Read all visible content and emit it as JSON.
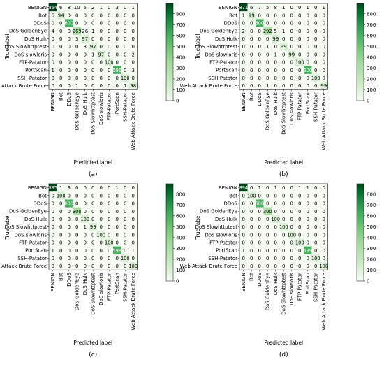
{
  "classes": [
    "BENIGN",
    "Bot",
    "DDoS",
    "DoS GoldenEye",
    "DoS Hulk",
    "DoS Slowhttptest",
    "DoS slowloris",
    "FTP-Patator",
    "PortScan",
    "SSH-Patator",
    "Web Attack Brute Force"
  ],
  "xlabel": "Predicted label",
  "ylabel": "True label",
  "colorbar_ticks": [
    0,
    100,
    200,
    300,
    400,
    500,
    600,
    700,
    800
  ],
  "colorbar_max": 895,
  "colors": {
    "low": "#f7fcf5",
    "high": "#00441b"
  },
  "chart_data": [
    {
      "type": "heatmap",
      "caption": "(a)",
      "xlabel": "Predicted label",
      "ylabel": "True label",
      "x_categories": [
        "BENIGN",
        "Bot",
        "DDoS",
        "DoS GoldenEye",
        "DoS Hulk",
        "DoS Slowhttptest",
        "DoS slowloris",
        "FTP-Patator",
        "PortScan",
        "SSH-Patator",
        "Web Attack Brute Force"
      ],
      "y_categories": [
        "BENIGN",
        "Bot",
        "DDoS",
        "DoS GoldenEye",
        "DoS Hulk",
        "DoS Slowhttptest",
        "DoS slowloris",
        "FTP-Patator",
        "PortScan",
        "SSH-Patator",
        "Web Attack Brute Force"
      ],
      "zlim": [
        0,
        864
      ],
      "matrix": [
        [
          864,
          6,
          8,
          10,
          5,
          2,
          1,
          0,
          3,
          0,
          1
        ],
        [
          6,
          94,
          0,
          0,
          0,
          0,
          0,
          0,
          0,
          0,
          0
        ],
        [
          0,
          0,
          600,
          0,
          0,
          0,
          0,
          0,
          0,
          0,
          0
        ],
        [
          4,
          0,
          0,
          269,
          26,
          1,
          0,
          0,
          0,
          0,
          0
        ],
        [
          0,
          0,
          0,
          3,
          97,
          0,
          0,
          0,
          0,
          0,
          0
        ],
        [
          0,
          0,
          0,
          0,
          3,
          97,
          0,
          0,
          0,
          0,
          0
        ],
        [
          0,
          0,
          0,
          0,
          0,
          1,
          97,
          0,
          0,
          0,
          2
        ],
        [
          0,
          0,
          0,
          0,
          0,
          0,
          0,
          100,
          0,
          0,
          0
        ],
        [
          1,
          0,
          0,
          0,
          0,
          0,
          0,
          0,
          596,
          0,
          3
        ],
        [
          0,
          0,
          0,
          0,
          0,
          0,
          0,
          0,
          0,
          100,
          0
        ],
        [
          0,
          0,
          0,
          1,
          0,
          0,
          0,
          0,
          0,
          1,
          98
        ]
      ]
    },
    {
      "type": "heatmap",
      "caption": "(b)",
      "xlabel": "Predicted label",
      "ylabel": "True label",
      "x_categories": [
        "BENIGN",
        "Bot",
        "DDoS",
        "DoS GoldenEye",
        "DoS Hulk",
        "DoS Slowhttptest",
        "DoS slowloris",
        "FTP-Patator",
        "PortScan",
        "SSH-Patator",
        "Web Attack Brute Force"
      ],
      "y_categories": [
        "BENIGN",
        "Bot",
        "DDoS",
        "DoS GoldenEye",
        "DoS Hulk",
        "DoS Slowhttptest",
        "DoS slowloris",
        "FTP-Patator",
        "PortScan",
        "SSH-Patator",
        "Web Attack Brute Force"
      ],
      "zlim": [
        0,
        871
      ],
      "matrix": [
        [
          871,
          6,
          7,
          5,
          8,
          1,
          0,
          0,
          1,
          0,
          1
        ],
        [
          1,
          99,
          0,
          0,
          0,
          0,
          0,
          0,
          0,
          0,
          0
        ],
        [
          0,
          0,
          600,
          0,
          0,
          0,
          0,
          0,
          0,
          0,
          0
        ],
        [
          2,
          0,
          0,
          292,
          5,
          1,
          0,
          0,
          0,
          0,
          0
        ],
        [
          0,
          0,
          0,
          0,
          99,
          0,
          0,
          0,
          0,
          0,
          0
        ],
        [
          0,
          0,
          0,
          1,
          0,
          99,
          0,
          0,
          0,
          0,
          0
        ],
        [
          0,
          0,
          0,
          0,
          1,
          0,
          99,
          0,
          0,
          0,
          0
        ],
        [
          0,
          0,
          0,
          0,
          0,
          0,
          0,
          100,
          0,
          0,
          0
        ],
        [
          0,
          0,
          0,
          0,
          0,
          0,
          0,
          0,
          600,
          0,
          0
        ],
        [
          0,
          0,
          0,
          0,
          0,
          0,
          0,
          0,
          0,
          100,
          0
        ],
        [
          0,
          0,
          0,
          1,
          0,
          0,
          0,
          0,
          0,
          0,
          99
        ]
      ]
    },
    {
      "type": "heatmap",
      "caption": "(c)",
      "xlabel": "Predicted label",
      "ylabel": "True label",
      "x_categories": [
        "BENIGN",
        "Bot",
        "DDoS",
        "DoS GoldenEye",
        "DoS Hulk",
        "DoS Slowhttptest",
        "DoS slowloris",
        "FTP-Patator",
        "PortScan",
        "SSH-Patator",
        "Web Attack Brute Force"
      ],
      "y_categories": [
        "BENIGN",
        "Bot",
        "DDoS",
        "DoS GoldenEye",
        "DoS Hulk",
        "DoS Slowhttptest",
        "DoS slowloris",
        "FTP-Patator",
        "PortScan",
        "SSH-Patator",
        "Web Attack Brute Force"
      ],
      "zlim": [
        0,
        895
      ],
      "matrix": [
        [
          895,
          1,
          3,
          0,
          0,
          0,
          0,
          0,
          1,
          0,
          0
        ],
        [
          0,
          100,
          0,
          0,
          0,
          0,
          0,
          0,
          0,
          0,
          0
        ],
        [
          0,
          0,
          600,
          0,
          0,
          0,
          0,
          0,
          0,
          0,
          0
        ],
        [
          0,
          0,
          0,
          300,
          0,
          0,
          0,
          0,
          0,
          0,
          0
        ],
        [
          0,
          0,
          0,
          0,
          100,
          0,
          0,
          0,
          0,
          0,
          0
        ],
        [
          0,
          0,
          0,
          0,
          1,
          99,
          0,
          0,
          0,
          0,
          0
        ],
        [
          0,
          0,
          0,
          0,
          0,
          0,
          100,
          0,
          0,
          0,
          0
        ],
        [
          0,
          0,
          0,
          0,
          0,
          0,
          0,
          100,
          0,
          0,
          0
        ],
        [
          1,
          0,
          0,
          0,
          0,
          0,
          0,
          0,
          598,
          0,
          1
        ],
        [
          0,
          0,
          0,
          0,
          0,
          0,
          0,
          0,
          0,
          100,
          0
        ],
        [
          0,
          0,
          0,
          0,
          0,
          0,
          0,
          0,
          0,
          0,
          100
        ]
      ]
    },
    {
      "type": "heatmap",
      "caption": "(d)",
      "xlabel": "Predicted label",
      "ylabel": "True label",
      "x_categories": [
        "BENIGN",
        "Bot",
        "DDoS",
        "DoS GoldenEye",
        "DoS Hulk",
        "DoS Slowhttptest",
        "DoS slowloris",
        "FTP-Patator",
        "PortScan",
        "SSH-Patator",
        "Web Attack Brute Force"
      ],
      "y_categories": [
        "BENIGN",
        "Bot",
        "DDoS",
        "DoS GoldenEye",
        "DoS Hulk",
        "DoS Slowhttptest",
        "DoS slowloris",
        "FTP-Patator",
        "PortScan",
        "SSH-Patator",
        "Web Attack Brute Force"
      ],
      "zlim": [
        0,
        894
      ],
      "matrix": [
        [
          894,
          0,
          1,
          0,
          1,
          0,
          0,
          1,
          1,
          0,
          0
        ],
        [
          0,
          100,
          0,
          0,
          0,
          0,
          0,
          0,
          0,
          0,
          0
        ],
        [
          0,
          0,
          600,
          0,
          0,
          0,
          0,
          0,
          0,
          0,
          0
        ],
        [
          0,
          0,
          0,
          300,
          0,
          0,
          0,
          0,
          0,
          0,
          0
        ],
        [
          0,
          0,
          0,
          0,
          100,
          0,
          0,
          0,
          0,
          0,
          0
        ],
        [
          0,
          0,
          0,
          0,
          0,
          100,
          0,
          0,
          0,
          0,
          0
        ],
        [
          0,
          0,
          0,
          0,
          0,
          0,
          100,
          0,
          0,
          0,
          0
        ],
        [
          0,
          0,
          0,
          0,
          0,
          0,
          0,
          100,
          0,
          0,
          0
        ],
        [
          1,
          0,
          0,
          0,
          0,
          0,
          0,
          0,
          599,
          0,
          0
        ],
        [
          0,
          0,
          0,
          0,
          0,
          0,
          0,
          0,
          0,
          100,
          0
        ],
        [
          0,
          0,
          0,
          0,
          0,
          0,
          0,
          0,
          0,
          0,
          100
        ]
      ]
    }
  ]
}
